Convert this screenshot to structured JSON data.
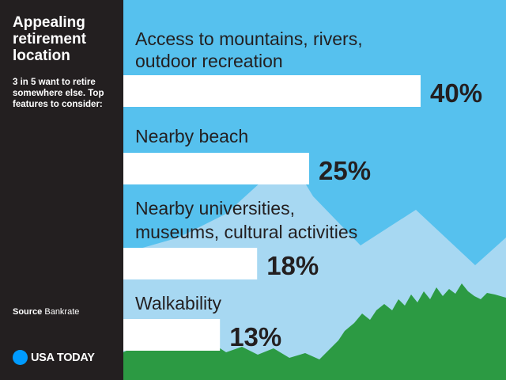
{
  "title": "Appealing retirement location",
  "subtitle": "3 in 5 want to retire somewhere else. Top features to consider:",
  "source": {
    "label": "Source",
    "name": "Bankrate"
  },
  "logo": {
    "text": "USA TODAY"
  },
  "colors": {
    "sky": "#56c1ee",
    "mountains": "#a7d8f2",
    "trees": "#2c9a43",
    "bar": "#ffffff",
    "sidebar": "#231f20",
    "logo_dot": "#009bff"
  },
  "chart_data": {
    "type": "bar",
    "orientation": "horizontal",
    "title": "Appealing retirement location",
    "subtitle": "3 in 5 want to retire somewhere else. Top features to consider:",
    "categories": [
      [
        "Access to mountains, rivers,",
        "outdoor recreation"
      ],
      [
        "Nearby beach"
      ],
      [
        "Nearby universities,",
        "museums, cultural activities"
      ],
      [
        "Walkability"
      ]
    ],
    "values": [
      40,
      25,
      18,
      13
    ],
    "value_labels": [
      "40%",
      "25%",
      "18%",
      "13%"
    ],
    "unit": "%",
    "grid": false,
    "legend": "none"
  }
}
